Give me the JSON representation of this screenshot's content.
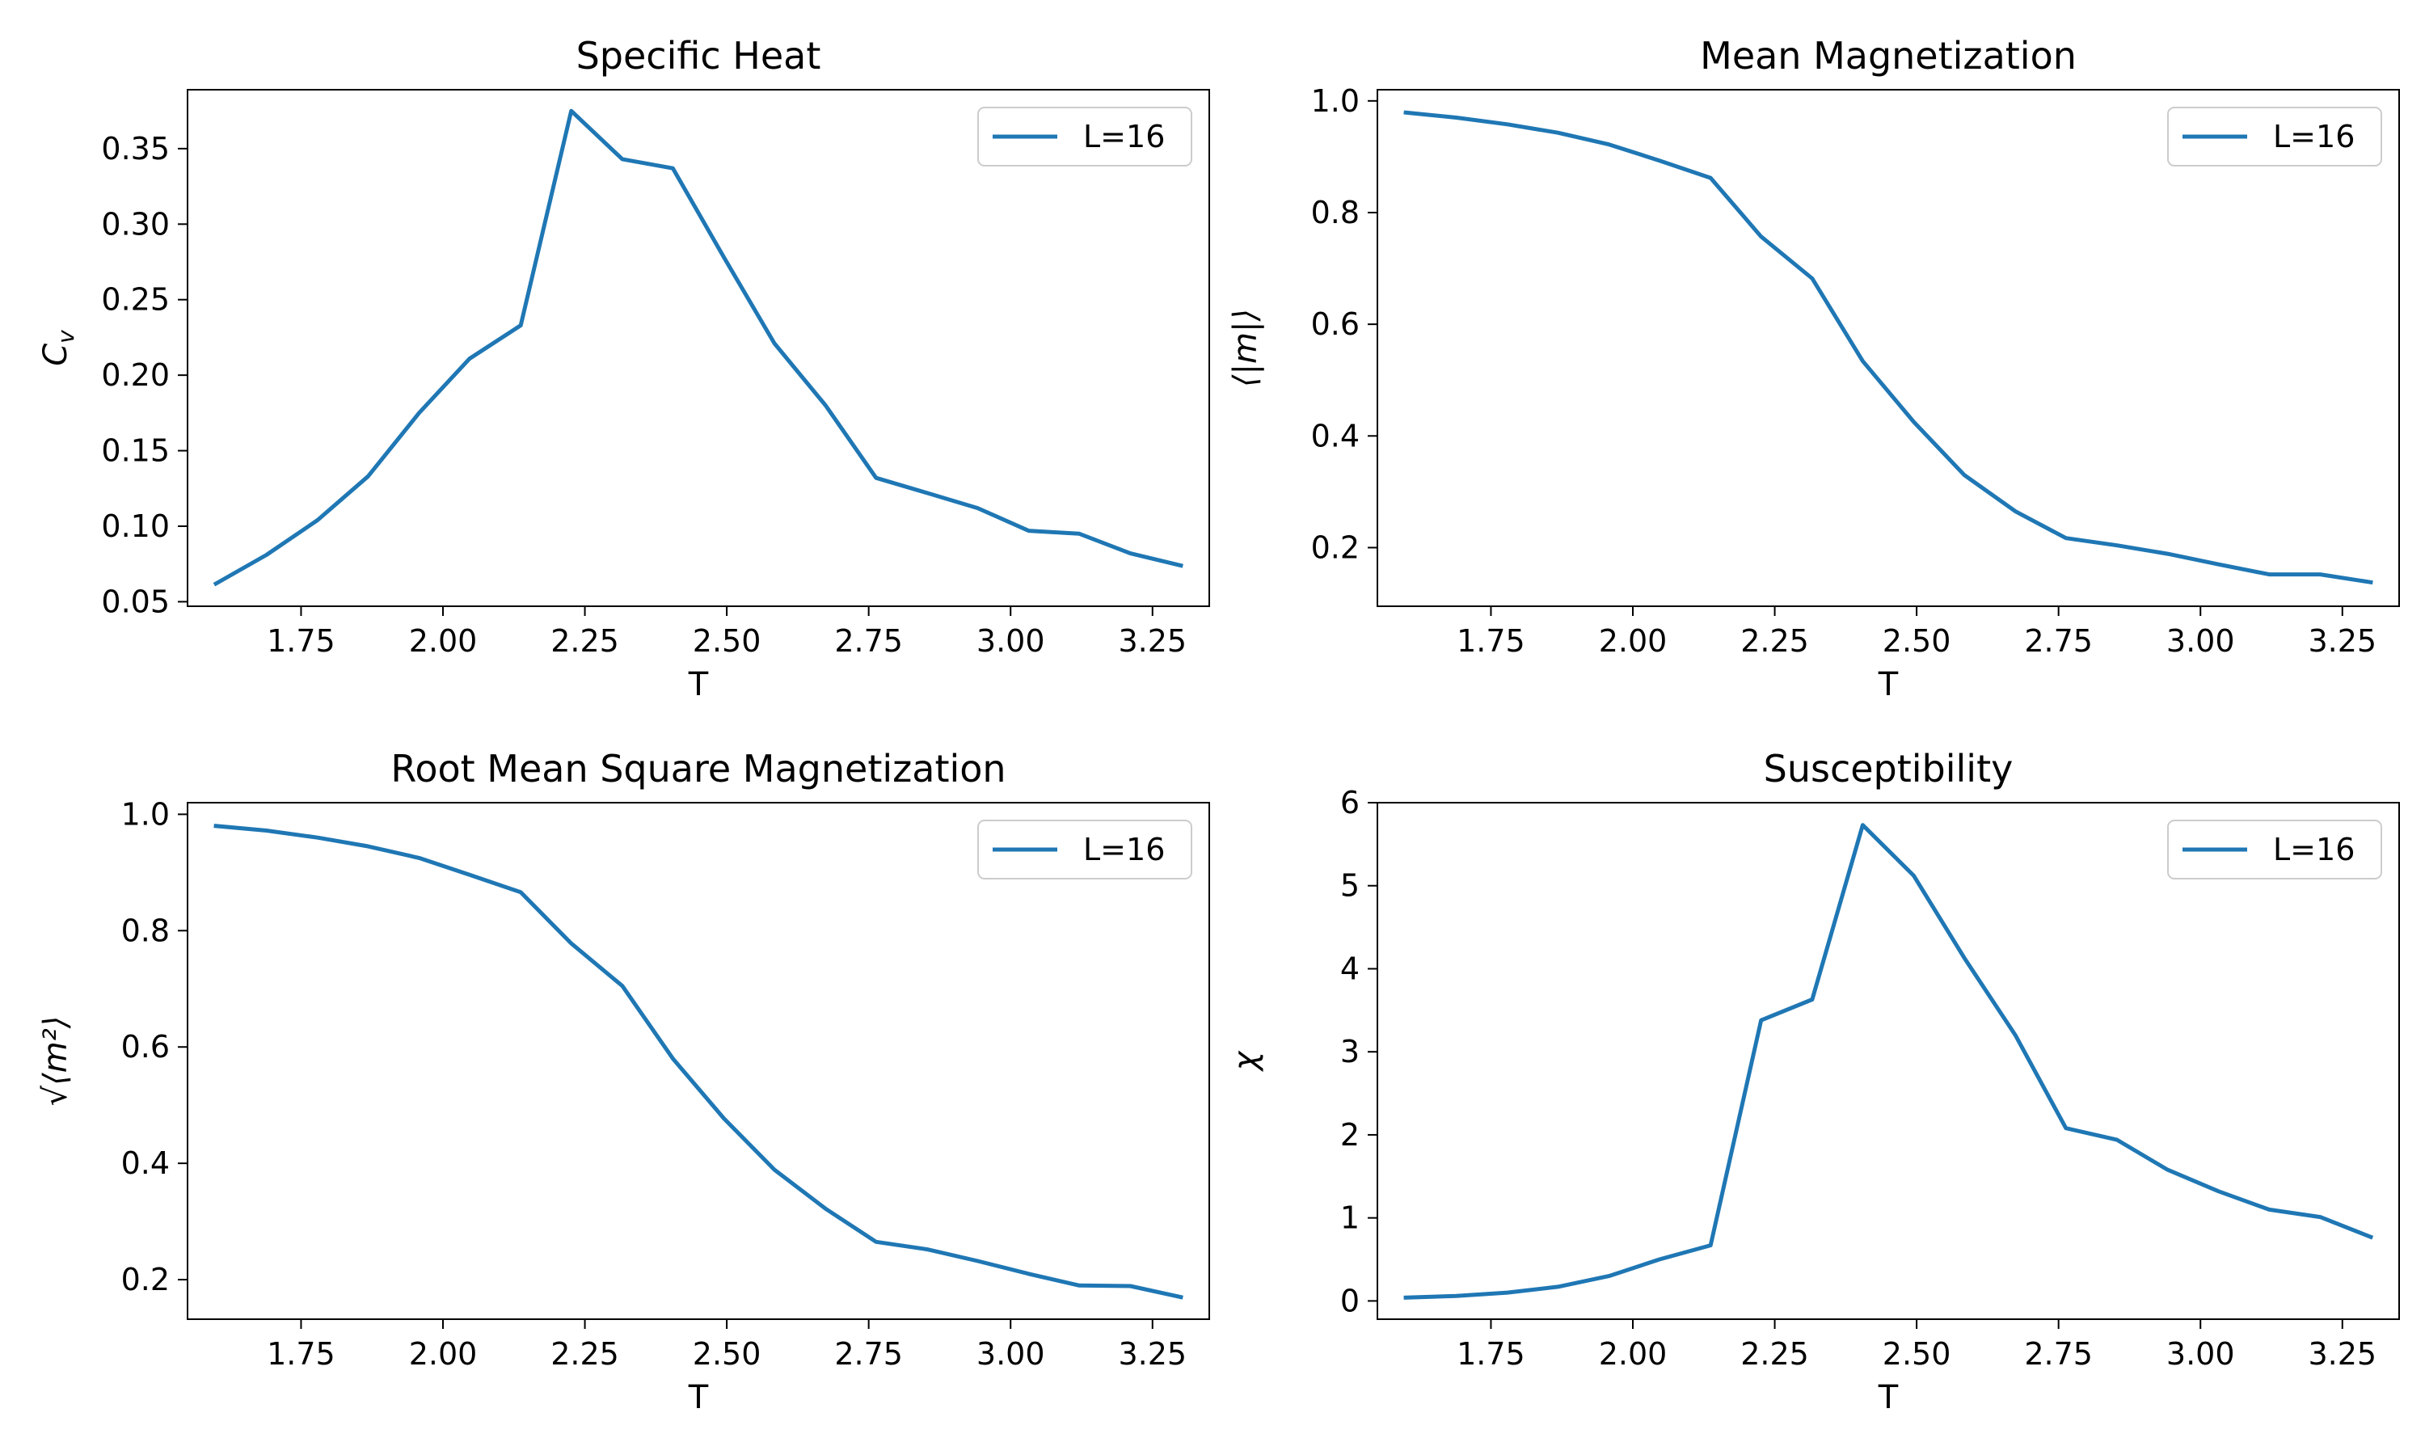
{
  "chart_data": [
    {
      "type": "line",
      "title": "Specific Heat",
      "xlabel": "T",
      "ylabel": "C",
      "ylabel_sub": "v",
      "xlim": [
        1.55,
        3.35
      ],
      "ylim": [
        0.047,
        0.389
      ],
      "xticks": [
        1.75,
        2.0,
        2.25,
        2.5,
        2.75,
        3.0,
        3.25
      ],
      "xtick_labels": [
        "1.75",
        "2.00",
        "2.25",
        "2.50",
        "2.75",
        "3.00",
        "3.25"
      ],
      "yticks": [
        0.05,
        0.1,
        0.15,
        0.2,
        0.25,
        0.3,
        0.35
      ],
      "ytick_labels": [
        "0.05",
        "0.10",
        "0.15",
        "0.20",
        "0.25",
        "0.30",
        "0.35"
      ],
      "legend_position": "top-right",
      "grid": false,
      "x": [
        1.6,
        1.689,
        1.779,
        1.868,
        1.958,
        2.047,
        2.137,
        2.226,
        2.316,
        2.405,
        2.495,
        2.584,
        2.674,
        2.763,
        2.853,
        2.942,
        3.032,
        3.121,
        3.211,
        3.3
      ],
      "series": [
        {
          "name": "L=16",
          "color": "#1f77b4",
          "values": [
            0.062,
            0.081,
            0.104,
            0.133,
            0.175,
            0.211,
            0.233,
            0.375,
            0.343,
            0.337,
            0.278,
            0.221,
            0.18,
            0.132,
            0.122,
            0.112,
            0.097,
            0.095,
            0.082,
            0.074
          ]
        }
      ]
    },
    {
      "type": "line",
      "title": "Mean Magnetization",
      "xlabel": "T",
      "ylabel": "⟨|m|⟩",
      "xlim": [
        1.55,
        3.35
      ],
      "ylim": [
        0.095,
        1.02
      ],
      "xticks": [
        1.75,
        2.0,
        2.25,
        2.5,
        2.75,
        3.0,
        3.25
      ],
      "xtick_labels": [
        "1.75",
        "2.00",
        "2.25",
        "2.50",
        "2.75",
        "3.00",
        "3.25"
      ],
      "yticks": [
        0.2,
        0.4,
        0.6,
        0.8,
        1.0
      ],
      "ytick_labels": [
        "0.2",
        "0.4",
        "0.6",
        "0.8",
        "1.0"
      ],
      "legend_position": "top-right",
      "grid": false,
      "x": [
        1.6,
        1.689,
        1.779,
        1.868,
        1.958,
        2.047,
        2.137,
        2.226,
        2.316,
        2.405,
        2.495,
        2.584,
        2.674,
        2.763,
        2.853,
        2.942,
        3.032,
        3.121,
        3.211,
        3.3
      ],
      "series": [
        {
          "name": "L=16",
          "color": "#1f77b4",
          "values": [
            0.979,
            0.97,
            0.958,
            0.943,
            0.922,
            0.893,
            0.862,
            0.757,
            0.682,
            0.534,
            0.425,
            0.33,
            0.265,
            0.217,
            0.204,
            0.189,
            0.17,
            0.152,
            0.152,
            0.138
          ]
        }
      ]
    },
    {
      "type": "line",
      "title": "Root Mean Square Magnetization",
      "xlabel": "T",
      "ylabel": "√⟨m²⟩",
      "xlim": [
        1.55,
        3.35
      ],
      "ylim": [
        0.132,
        1.02
      ],
      "xticks": [
        1.75,
        2.0,
        2.25,
        2.5,
        2.75,
        3.0,
        3.25
      ],
      "xtick_labels": [
        "1.75",
        "2.00",
        "2.25",
        "2.50",
        "2.75",
        "3.00",
        "3.25"
      ],
      "yticks": [
        0.2,
        0.4,
        0.6,
        0.8,
        1.0
      ],
      "ytick_labels": [
        "0.2",
        "0.4",
        "0.6",
        "0.8",
        "1.0"
      ],
      "legend_position": "top-right",
      "grid": false,
      "x": [
        1.6,
        1.689,
        1.779,
        1.868,
        1.958,
        2.047,
        2.137,
        2.226,
        2.316,
        2.405,
        2.495,
        2.584,
        2.674,
        2.763,
        2.853,
        2.942,
        3.032,
        3.121,
        3.211,
        3.3
      ],
      "series": [
        {
          "name": "L=16",
          "color": "#1f77b4",
          "values": [
            0.98,
            0.972,
            0.96,
            0.945,
            0.925,
            0.896,
            0.866,
            0.778,
            0.705,
            0.58,
            0.477,
            0.389,
            0.322,
            0.265,
            0.252,
            0.232,
            0.21,
            0.19,
            0.189,
            0.17
          ]
        }
      ]
    },
    {
      "type": "line",
      "title": "Susceptibility",
      "xlabel": "T",
      "ylabel": "χ",
      "xlim": [
        1.55,
        3.35
      ],
      "ylim": [
        -0.22,
        6.0
      ],
      "xticks": [
        1.75,
        2.0,
        2.25,
        2.5,
        2.75,
        3.0,
        3.25
      ],
      "xtick_labels": [
        "1.75",
        "2.00",
        "2.25",
        "2.50",
        "2.75",
        "3.00",
        "3.25"
      ],
      "yticks": [
        0,
        1,
        2,
        3,
        4,
        5,
        6
      ],
      "ytick_labels": [
        "0",
        "1",
        "2",
        "3",
        "4",
        "5",
        "6"
      ],
      "legend_position": "top-right",
      "grid": false,
      "x": [
        1.6,
        1.689,
        1.779,
        1.868,
        1.958,
        2.047,
        2.137,
        2.226,
        2.316,
        2.405,
        2.495,
        2.584,
        2.674,
        2.763,
        2.853,
        2.942,
        3.032,
        3.121,
        3.211,
        3.3
      ],
      "series": [
        {
          "name": "L=16",
          "color": "#1f77b4",
          "values": [
            0.04,
            0.06,
            0.1,
            0.17,
            0.3,
            0.5,
            0.67,
            3.38,
            3.63,
            5.73,
            5.12,
            4.13,
            3.2,
            2.08,
            1.94,
            1.58,
            1.32,
            1.1,
            1.01,
            0.77
          ]
        }
      ]
    }
  ]
}
